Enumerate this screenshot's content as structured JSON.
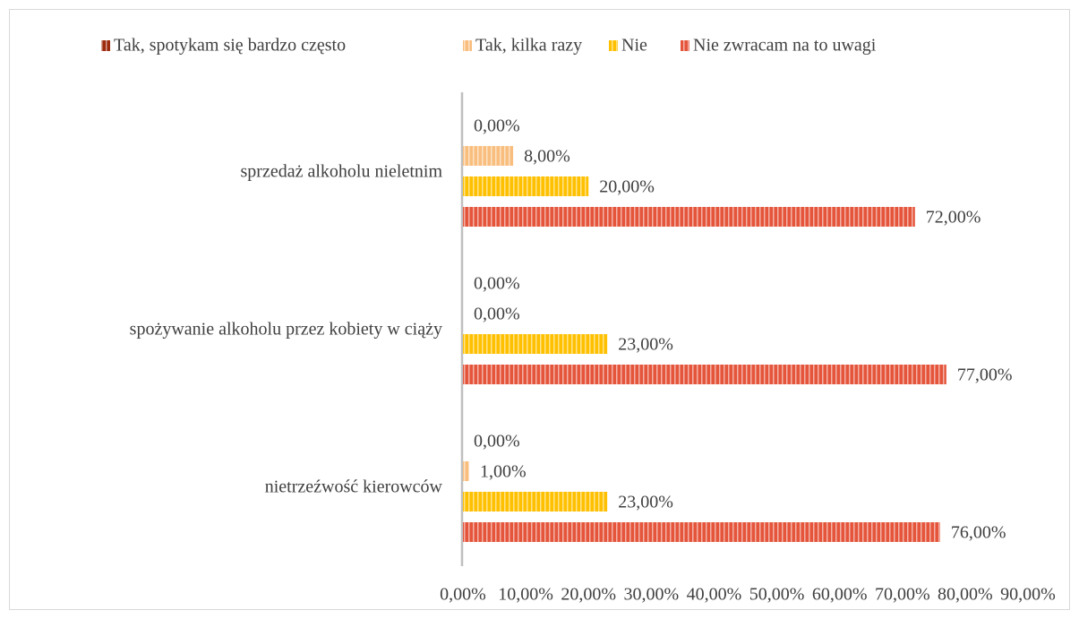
{
  "chart_data": {
    "type": "bar",
    "orientation": "horizontal",
    "categories": [
      "sprzedaż alkoholu nieletnim",
      "spożywanie alkoholu przez kobiety w ciąży",
      "nietrzeźwość kierowców"
    ],
    "series": [
      {
        "name": "Tak, spotykam się bardzo często",
        "color": "#9c2a0e",
        "values": [
          0,
          0,
          0
        ],
        "value_labels": [
          "0,00%",
          "0,00%",
          "0,00%"
        ]
      },
      {
        "name": "Tak, kilka razy",
        "color": "#f9be7e",
        "values": [
          8,
          0,
          1
        ],
        "value_labels": [
          "8,00%",
          "0,00%",
          "1,00%"
        ]
      },
      {
        "name": "Nie",
        "color": "#ffc000",
        "values": [
          20,
          23,
          23
        ],
        "value_labels": [
          "20,00%",
          "23,00%",
          "23,00%"
        ]
      },
      {
        "name": "Nie zwracam na to uwagi",
        "color": "#e4553b",
        "values": [
          72,
          77,
          76
        ],
        "value_labels": [
          "72,00%",
          "77,00%",
          "76,00%"
        ]
      }
    ],
    "xlim": [
      0,
      90
    ],
    "xticks": [
      {
        "value": 0,
        "label": "0,00%"
      },
      {
        "value": 10,
        "label": "10,00%"
      },
      {
        "value": 20,
        "label": "20,00%"
      },
      {
        "value": 30,
        "label": "30,00%"
      },
      {
        "value": 40,
        "label": "40,00%"
      },
      {
        "value": 50,
        "label": "50,00%"
      },
      {
        "value": 60,
        "label": "60,00%"
      },
      {
        "value": 70,
        "label": "70,00%"
      },
      {
        "value": 80,
        "label": "80,00%"
      },
      {
        "value": 90,
        "label": "90,00%"
      }
    ],
    "legend": "top",
    "grid": false
  }
}
